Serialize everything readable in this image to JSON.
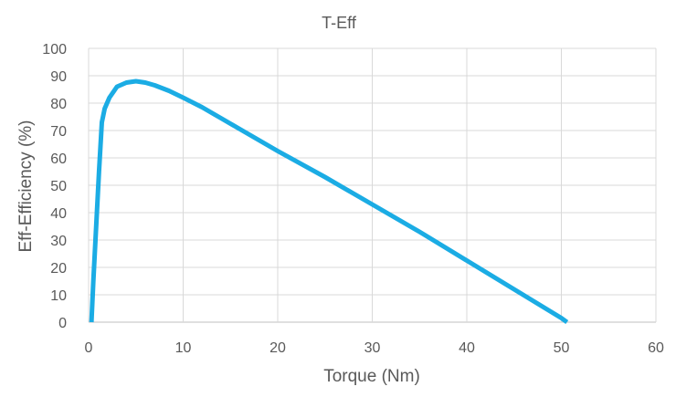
{
  "chart_data": {
    "type": "line",
    "title": "T-Eff",
    "xlabel": "Torque (Nm)",
    "ylabel": "Eff-Efficiency (%)",
    "xlim": [
      0,
      60
    ],
    "ylim": [
      0,
      100
    ],
    "xticks": [
      0,
      10,
      20,
      30,
      40,
      50,
      60
    ],
    "yticks": [
      0,
      10,
      20,
      30,
      40,
      50,
      60,
      70,
      80,
      90,
      100
    ],
    "grid": true,
    "legend": "none",
    "series": [
      {
        "color": "#1BACE4",
        "x": [
          0.3,
          0.5,
          0.8,
          1.1,
          1.4,
          1.7,
          2.2,
          3.0,
          4.0,
          5.0,
          6.0,
          7.0,
          8.5,
          10.0,
          12.0,
          14.0,
          16.0,
          18.0,
          20.0,
          25.0,
          30.0,
          35.0,
          40.0,
          45.0,
          50.0,
          50.6
        ],
        "y": [
          0,
          15,
          35,
          55,
          73,
          78,
          82,
          86,
          87.5,
          88,
          87.5,
          86.5,
          84.5,
          82,
          78.5,
          74.5,
          70.5,
          66.5,
          62.5,
          53,
          43,
          33,
          22.5,
          12,
          1.5,
          0
        ]
      }
    ]
  }
}
